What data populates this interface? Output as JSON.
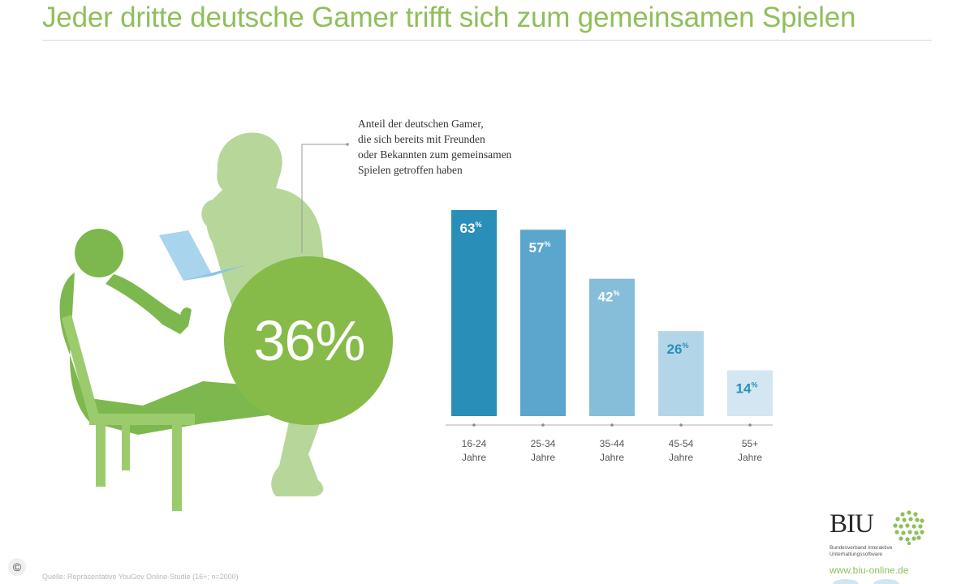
{
  "header": {
    "title": "Jeder dritte deutsche Gamer trifft sich zum gemeinsamen Spielen"
  },
  "highlight": {
    "value_label": "36%",
    "value": 36,
    "annotation_lines": [
      "Anteil der deutschen Gamer,",
      "die sich bereits mit Freunden",
      "oder Bekannten zum gemeinsamen",
      "Spielen getroffen haben"
    ]
  },
  "chart_data": {
    "type": "bar",
    "title": "",
    "xlabel": "",
    "ylabel": "",
    "categories": [
      [
        "16-24",
        "Jahre"
      ],
      [
        "25-34",
        "Jahre"
      ],
      [
        "35-44",
        "Jahre"
      ],
      [
        "45-54",
        "Jahre"
      ],
      [
        "55+",
        "Jahre"
      ]
    ],
    "values": [
      63,
      57,
      42,
      26,
      14
    ],
    "value_unit": "%",
    "ylim": [
      0,
      63
    ],
    "grid": false,
    "bar_colors": [
      "#2a8fb8",
      "#5ba6cc",
      "#86bdd9",
      "#b3d5e8",
      "#d3e6f1"
    ],
    "label_colors": [
      "#ffffff",
      "#ffffff",
      "#ffffff",
      "#2a8fb8",
      "#2a8fb8"
    ]
  },
  "branding": {
    "logo_text": "BIU",
    "org_lines": [
      "Bundesverband Interaktive",
      "Unterhaltungssoftware"
    ],
    "url": "www.biu-online.de"
  },
  "footer": {
    "source": "Quelle: Repräsentative YouGov Online-Studie (16+; n=2000)",
    "copyright_symbol": "©"
  },
  "colors": {
    "accent_green": "#8fbf5a",
    "figure_green": "#7db84e",
    "figure_light_green": "#b7d79a",
    "circle_green": "#86bb4a",
    "laptop_blue": "#a9d4ee"
  }
}
